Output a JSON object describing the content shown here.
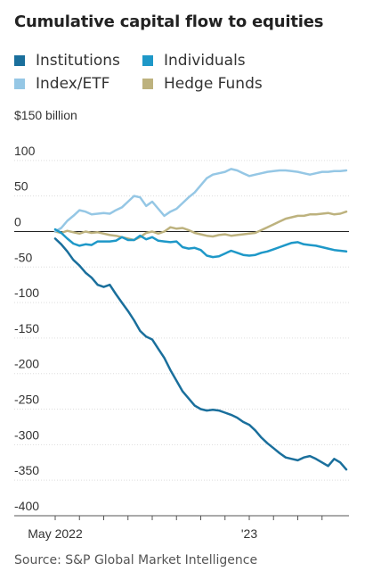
{
  "title": "Cumulative capital flow to equities",
  "source": "Source: S&P Global Market Intelligence",
  "chart_data": {
    "type": "line",
    "title": "Cumulative capital flow to equities",
    "ylabel": "",
    "xlabel": "",
    "ylim": [
      -400,
      150
    ],
    "y_ticks": [
      150,
      100,
      50,
      0,
      -50,
      -100,
      -150,
      -200,
      -250,
      -300,
      -350,
      -400
    ],
    "y_tick_labels": [
      "$150 billion",
      "100",
      "50",
      "0",
      "-50",
      "-100",
      "-150",
      "-200",
      "-250",
      "-300",
      "-350",
      "-400"
    ],
    "x_ticks": [
      0,
      4,
      8,
      12,
      16,
      20,
      24,
      28,
      32,
      36,
      40,
      44
    ],
    "x_tick_labels": [
      {
        "week": 0,
        "label": "May 2022"
      },
      {
        "week": 32,
        "label": "'23"
      }
    ],
    "x_range": [
      0,
      48
    ],
    "x_unit": "weeks from May 2022",
    "grid": true,
    "legend_position": "top",
    "series": [
      {
        "name": "Institutions",
        "color": "#1a6f9c",
        "x": [
          0,
          1,
          2,
          3,
          4,
          5,
          6,
          7,
          8,
          9,
          10,
          11,
          12,
          13,
          14,
          15,
          16,
          17,
          18,
          19,
          20,
          21,
          22,
          23,
          24,
          25,
          26,
          27,
          28,
          29,
          30,
          31,
          32,
          33,
          34,
          35,
          36,
          37,
          38,
          39,
          40,
          41,
          42,
          43,
          44,
          45,
          46,
          47,
          48
        ],
        "values": [
          -10,
          -18,
          -28,
          -40,
          -48,
          -58,
          -65,
          -75,
          -78,
          -75,
          -88,
          -100,
          -112,
          -125,
          -140,
          -148,
          -152,
          -165,
          -178,
          -195,
          -210,
          -225,
          -235,
          -245,
          -250,
          -252,
          -251,
          -252,
          -255,
          -258,
          -262,
          -268,
          -272,
          -280,
          -290,
          -298,
          -305,
          -312,
          -318,
          -320,
          -322,
          -318,
          -316,
          -320,
          -325,
          -330,
          -320,
          -325,
          -335
        ]
      },
      {
        "name": "Individuals",
        "color": "#1e98c8",
        "x": [
          0,
          1,
          2,
          3,
          4,
          5,
          6,
          7,
          8,
          9,
          10,
          11,
          12,
          13,
          14,
          15,
          16,
          17,
          18,
          19,
          20,
          21,
          22,
          23,
          24,
          25,
          26,
          27,
          28,
          29,
          30,
          31,
          32,
          33,
          34,
          35,
          36,
          37,
          38,
          39,
          40,
          41,
          42,
          43,
          44,
          45,
          46,
          47,
          48
        ],
        "values": [
          3,
          -2,
          -10,
          -17,
          -20,
          -18,
          -19,
          -14,
          -14,
          -14,
          -13,
          -8,
          -12,
          -12,
          -6,
          -11,
          -8,
          -13,
          -14,
          -15,
          -14,
          -22,
          -24,
          -23,
          -26,
          -34,
          -36,
          -35,
          -31,
          -27,
          -30,
          -33,
          -34,
          -33,
          -30,
          -28,
          -25,
          -22,
          -19,
          -16,
          -15,
          -18,
          -19,
          -20,
          -22,
          -24,
          -26,
          -27,
          -28
        ]
      },
      {
        "name": "Index/ETF",
        "color": "#95c7e5",
        "x": [
          0,
          1,
          2,
          3,
          4,
          5,
          6,
          7,
          8,
          9,
          10,
          11,
          12,
          13,
          14,
          15,
          16,
          17,
          18,
          19,
          20,
          21,
          22,
          23,
          24,
          25,
          26,
          27,
          28,
          29,
          30,
          31,
          32,
          33,
          34,
          35,
          36,
          37,
          38,
          39,
          40,
          41,
          42,
          43,
          44,
          45,
          46,
          47,
          48
        ],
        "values": [
          0,
          5,
          15,
          22,
          30,
          28,
          24,
          25,
          26,
          25,
          30,
          34,
          42,
          50,
          48,
          36,
          42,
          32,
          22,
          28,
          32,
          40,
          48,
          55,
          65,
          75,
          80,
          82,
          84,
          88,
          86,
          82,
          78,
          80,
          82,
          84,
          85,
          86,
          86,
          85,
          84,
          82,
          80,
          82,
          84,
          84,
          85,
          85,
          86
        ]
      },
      {
        "name": "Hedge Funds",
        "color": "#bdb27e",
        "x": [
          0,
          1,
          2,
          3,
          4,
          5,
          6,
          7,
          8,
          9,
          10,
          11,
          12,
          13,
          14,
          15,
          16,
          17,
          18,
          19,
          20,
          21,
          22,
          23,
          24,
          25,
          26,
          27,
          28,
          29,
          30,
          31,
          32,
          33,
          34,
          35,
          36,
          37,
          38,
          39,
          40,
          41,
          42,
          43,
          44,
          45,
          46,
          47,
          48
        ],
        "values": [
          0,
          -2,
          1,
          -1,
          -3,
          0,
          -2,
          -1,
          -3,
          -5,
          -6,
          -8,
          -10,
          -12,
          -8,
          -2,
          0,
          -3,
          0,
          6,
          4,
          5,
          2,
          -2,
          -4,
          -6,
          -7,
          -5,
          -4,
          -6,
          -5,
          -4,
          -3,
          -2,
          2,
          6,
          10,
          14,
          18,
          20,
          22,
          22,
          24,
          24,
          25,
          26,
          24,
          25,
          28
        ]
      }
    ]
  }
}
